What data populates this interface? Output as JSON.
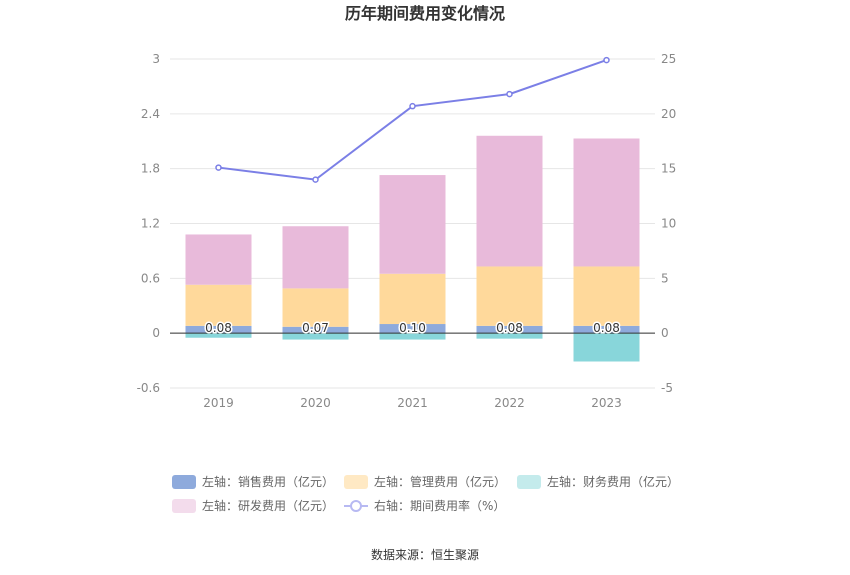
{
  "chart_data": {
    "type": "bar",
    "title": "历年期间费用变化情况",
    "categories": [
      "2019",
      "2020",
      "2021",
      "2022",
      "2023"
    ],
    "left_axis": {
      "ylim": [
        -0.6,
        3
      ],
      "ticks": [
        "3",
        "2.4",
        "1.8",
        "1.2",
        "0.6",
        "0",
        "-0.6"
      ]
    },
    "right_axis": {
      "ylim": [
        -5,
        25
      ],
      "ticks": [
        "25",
        "20",
        "15",
        "10",
        "5",
        "0",
        "-5"
      ]
    },
    "stacked": true,
    "series": [
      {
        "name": "左轴：销售费用（亿元）",
        "axis": "left",
        "color": "#8eaadc",
        "values": [
          0.08,
          0.07,
          0.1,
          0.08,
          0.08
        ],
        "labels": [
          "0.08",
          "0.07",
          "0.10",
          "0.08",
          "0.08"
        ]
      },
      {
        "name": "左轴：管理费用（亿元）",
        "axis": "left",
        "color": "#ffd99b",
        "values": [
          0.45,
          0.42,
          0.55,
          0.65,
          0.65
        ]
      },
      {
        "name": "左轴：财务费用（亿元）",
        "axis": "left",
        "color": "#88d6da",
        "values": [
          -0.05,
          -0.07,
          -0.07,
          -0.06,
          -0.31
        ]
      },
      {
        "name": "左轴：研发费用（亿元）",
        "axis": "left",
        "color": "#e8bada",
        "values": [
          0.55,
          0.68,
          1.08,
          1.43,
          1.4
        ]
      },
      {
        "name": "右轴：期间费用率（%）",
        "axis": "right",
        "type": "line",
        "color": "#7b7fe6",
        "values": [
          15.1,
          14.0,
          20.7,
          21.8,
          24.9
        ]
      }
    ],
    "legend": {
      "placement": "bottom",
      "items": [
        {
          "label": "左轴：销售费用（亿元）",
          "color": "#8eaadc",
          "kind": "bar"
        },
        {
          "label": "左轴：管理费用（亿元）",
          "color": "#ffe9c4",
          "kind": "bar"
        },
        {
          "label": "左轴：财务费用（亿元）",
          "color": "#c4ebec",
          "kind": "bar"
        },
        {
          "label": "左轴：研发费用（亿元）",
          "color": "#f3dcec",
          "kind": "bar"
        },
        {
          "label": "右轴：期间费用率（%）",
          "color": "#b7b9f2",
          "kind": "line"
        }
      ]
    },
    "grid": true
  },
  "source": "数据来源：恒生聚源"
}
